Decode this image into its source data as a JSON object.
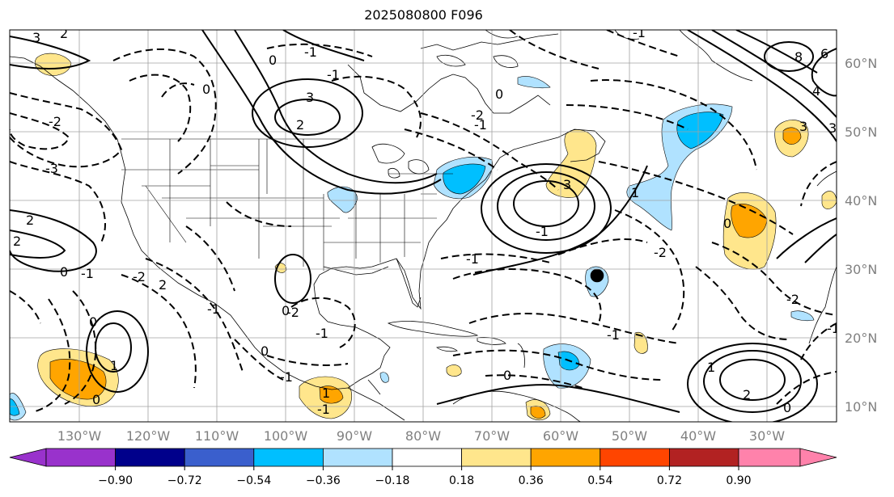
{
  "title": "2025080800 F096",
  "longitude_labels": [
    "130°W",
    "120°W",
    "110°W",
    "100°W",
    "90°W",
    "80°W",
    "70°W",
    "60°W",
    "50°W",
    "40°W",
    "30°W"
  ],
  "latitude_labels": [
    "60°N",
    "50°N",
    "40°N",
    "30°N",
    "20°N",
    "10°N"
  ],
  "colorbar": {
    "ticks": [
      "−0.90",
      "−0.72",
      "−0.54",
      "−0.36",
      "−0.18",
      "0.18",
      "0.36",
      "0.54",
      "0.72",
      "0.90"
    ],
    "colors": [
      "#9932cc",
      "#00008b",
      "#3a5fcd",
      "#00bfff",
      "#b0e2ff",
      "#ffffff",
      "#ffe68c",
      "#ffa500",
      "#ff4500",
      "#b22222",
      "#ff82ab"
    ]
  },
  "contour_labels": [
    "3",
    "2",
    "0",
    "-1",
    "3",
    "2",
    "-1",
    "-2",
    "-3",
    "2",
    "0",
    "-1",
    "0",
    "-2",
    "-1",
    "3",
    "0",
    "-1",
    "1",
    "1",
    "0",
    "-1",
    "-2",
    "-1",
    "0",
    "1",
    "-1",
    "3",
    "-1",
    "-2",
    "0",
    "-2",
    "2",
    "-1",
    "0",
    "-1",
    "-2",
    "-1",
    "0",
    "4",
    "6",
    "8",
    "3",
    "2",
    "0",
    "-1",
    "2",
    "0",
    "1"
  ],
  "colors": {
    "axis_text": "#808080",
    "grid": "#a0a0a0",
    "contour": "#000000",
    "coast": "#000000"
  }
}
